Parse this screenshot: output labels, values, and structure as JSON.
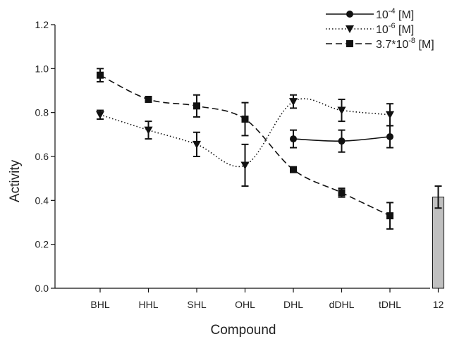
{
  "chart_data": {
    "type": "line",
    "xlabel": "Compound",
    "ylabel": "Activity",
    "ylim": [
      0,
      1.2
    ],
    "yticks": [
      "0.0",
      "0.2",
      "0.4",
      "0.6",
      "0.8",
      "1.0",
      "1.2"
    ],
    "categories": [
      "BHL",
      "HHL",
      "SHL",
      "OHL",
      "DHL",
      "dDHL",
      "tDHL",
      "12"
    ],
    "legend_position": "top-right",
    "grid": false,
    "series": [
      {
        "name": "10^-4 [M]",
        "label_base": "10",
        "label_exp": "-4",
        "label_unit": " [M]",
        "marker": "circle",
        "line_style": "solid",
        "values": [
          null,
          null,
          null,
          null,
          0.68,
          0.67,
          0.69,
          null
        ],
        "errors": [
          null,
          null,
          null,
          null,
          0.04,
          0.05,
          0.05,
          null
        ]
      },
      {
        "name": "10^-6 [M]",
        "label_base": "10",
        "label_exp": "-6",
        "label_unit": " [M]",
        "marker": "triangle-down",
        "line_style": "dotted",
        "values": [
          0.79,
          0.72,
          0.655,
          0.56,
          0.85,
          0.81,
          0.79,
          null
        ],
        "errors": [
          0.02,
          0.04,
          0.055,
          0.095,
          0.03,
          0.05,
          0.05,
          null
        ]
      },
      {
        "name": "3.7*10^-8 [M]",
        "label_base": "3.7*10",
        "label_exp": "-8",
        "label_unit": " [M]",
        "marker": "square",
        "line_style": "dashed",
        "values": [
          0.97,
          0.86,
          0.83,
          0.77,
          0.54,
          0.435,
          0.33,
          null
        ],
        "errors": [
          0.03,
          0.01,
          0.05,
          0.075,
          0.01,
          0.02,
          0.06,
          null
        ]
      }
    ],
    "bar": {
      "category": "12",
      "value": 0.415,
      "error": 0.05,
      "color": "#c0c0c0"
    },
    "line_color": "#111111"
  }
}
